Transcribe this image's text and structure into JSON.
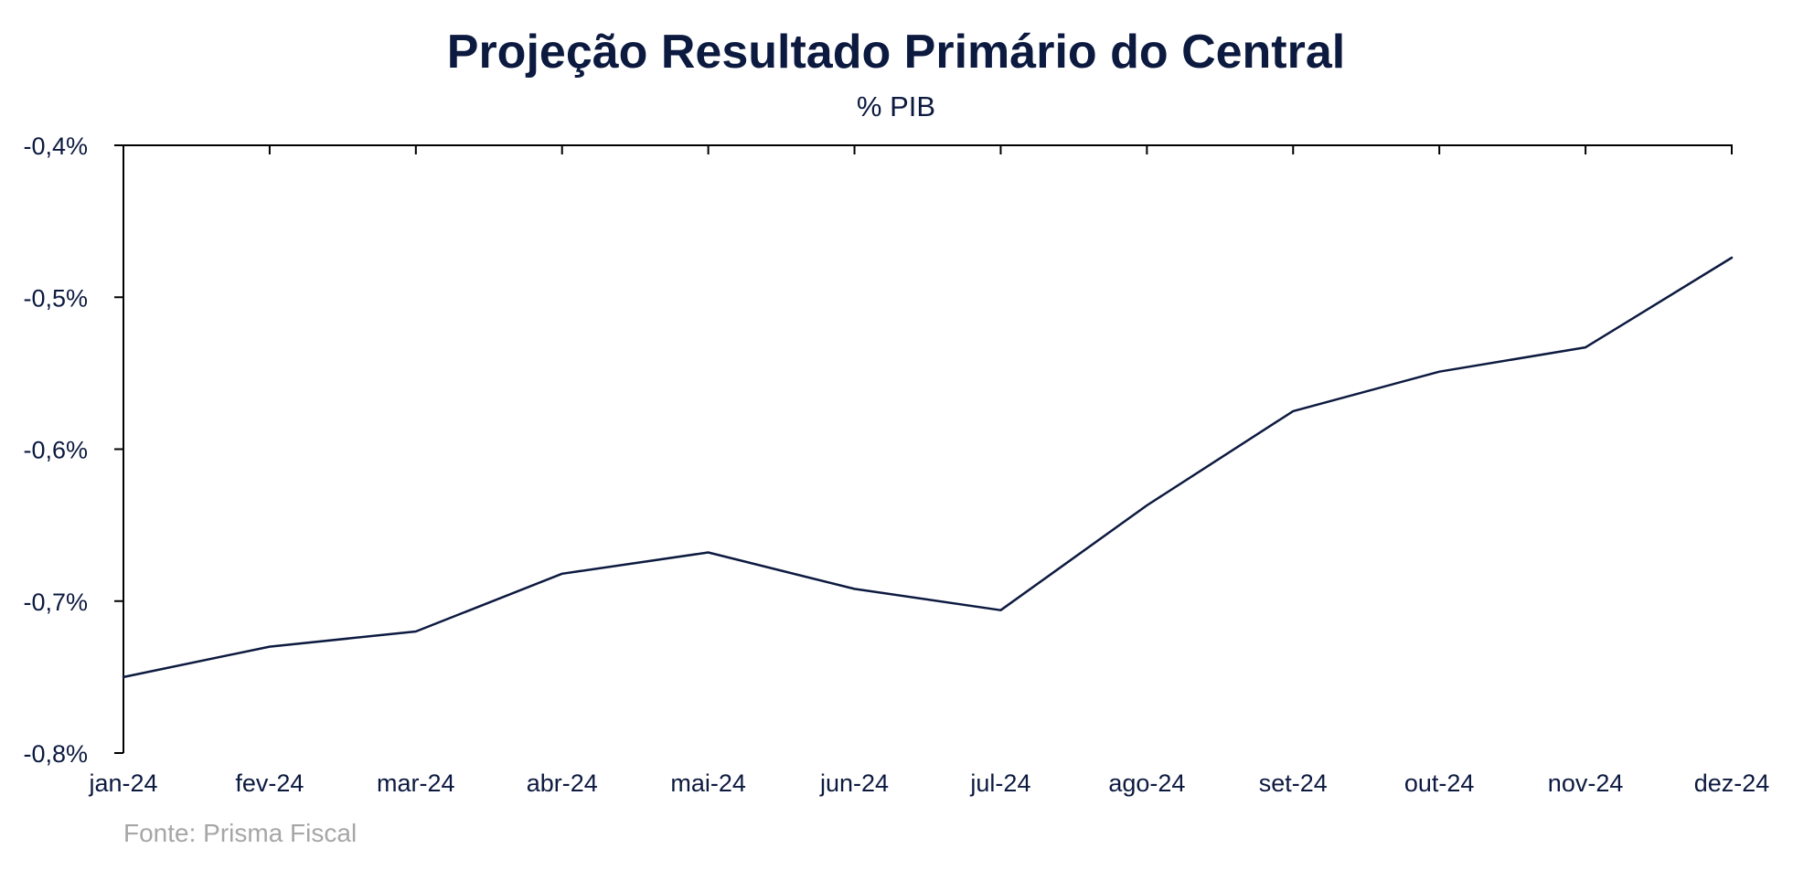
{
  "chart_data": {
    "type": "line",
    "title": "Projeção Resultado Primário do Central",
    "subtitle": "% PIB",
    "xlabel": "",
    "ylabel": "",
    "categories": [
      "jan-24",
      "fev-24",
      "mar-24",
      "abr-24",
      "mai-24",
      "jun-24",
      "jul-24",
      "ago-24",
      "set-24",
      "out-24",
      "nov-24",
      "dez-24"
    ],
    "series": [
      {
        "values": [
          -0.75,
          -0.73,
          -0.72,
          -0.682,
          -0.668,
          -0.692,
          -0.706,
          -0.637,
          -0.575,
          -0.549,
          -0.533,
          -0.474
        ]
      }
    ],
    "ylim": [
      -0.8,
      -0.4
    ],
    "yticks": [
      -0.4,
      -0.5,
      -0.6,
      -0.7,
      -0.8
    ],
    "ytick_labels": [
      "-0,4%",
      "-0,5%",
      "-0,6%",
      "-0,7%",
      "-0,8%"
    ],
    "grid": false,
    "legend": "none",
    "source": "Fonte: Prisma Fiscal",
    "colors": {
      "line": "#0d1a40",
      "text": "#0d1a40",
      "source": "#a6a6a6",
      "axis": "#000000"
    }
  }
}
